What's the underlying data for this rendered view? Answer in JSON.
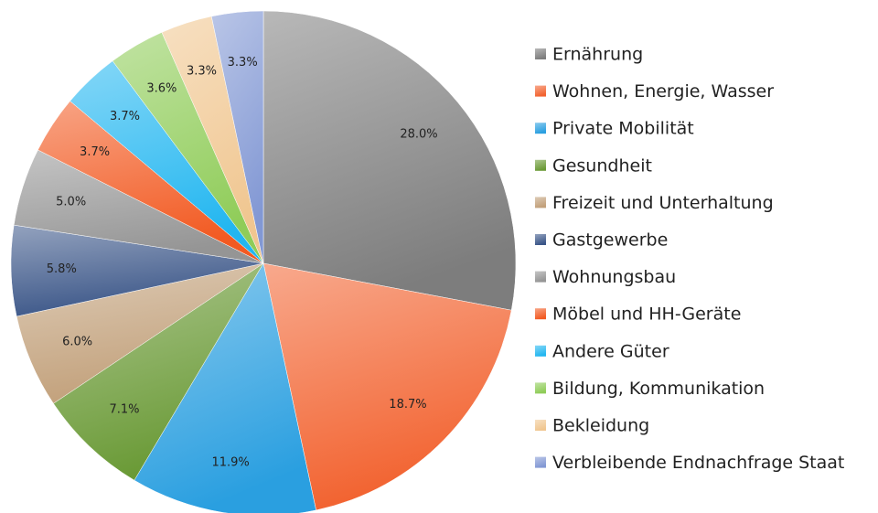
{
  "chart_data": {
    "type": "pie",
    "categories": [
      "Ernährung",
      "Wohnen, Energie, Wasser",
      "Private Mobilität",
      "Gesundheit",
      "Freizeit und Unterhaltung",
      "Gastgewerbe",
      "Wohnungsbau",
      "Möbel und HH-Geräte",
      "Andere Güter",
      "Bildung, Kommunikation",
      "Bekleidung",
      "Verbleibende Endnachfrage Staat"
    ],
    "values": [
      28.0,
      18.7,
      11.9,
      7.1,
      6.0,
      5.8,
      5.0,
      3.7,
      3.7,
      3.6,
      3.3,
      3.3
    ],
    "value_labels": [
      "28.0%",
      "18.7%",
      "11.9%",
      "7.1%",
      "6.0%",
      "5.8%",
      "5.0%",
      "3.7%",
      "3.7%",
      "3.6%",
      "3.3%",
      "3.3%"
    ],
    "colors": [
      "#7d7d7d",
      "#f2622f",
      "#2a9fe0",
      "#6a9a36",
      "#c2a07a",
      "#3b5688",
      "#959595",
      "#f25a22",
      "#22b6f0",
      "#8fcc58",
      "#f0c690",
      "#8298d4"
    ],
    "legend": "right"
  }
}
